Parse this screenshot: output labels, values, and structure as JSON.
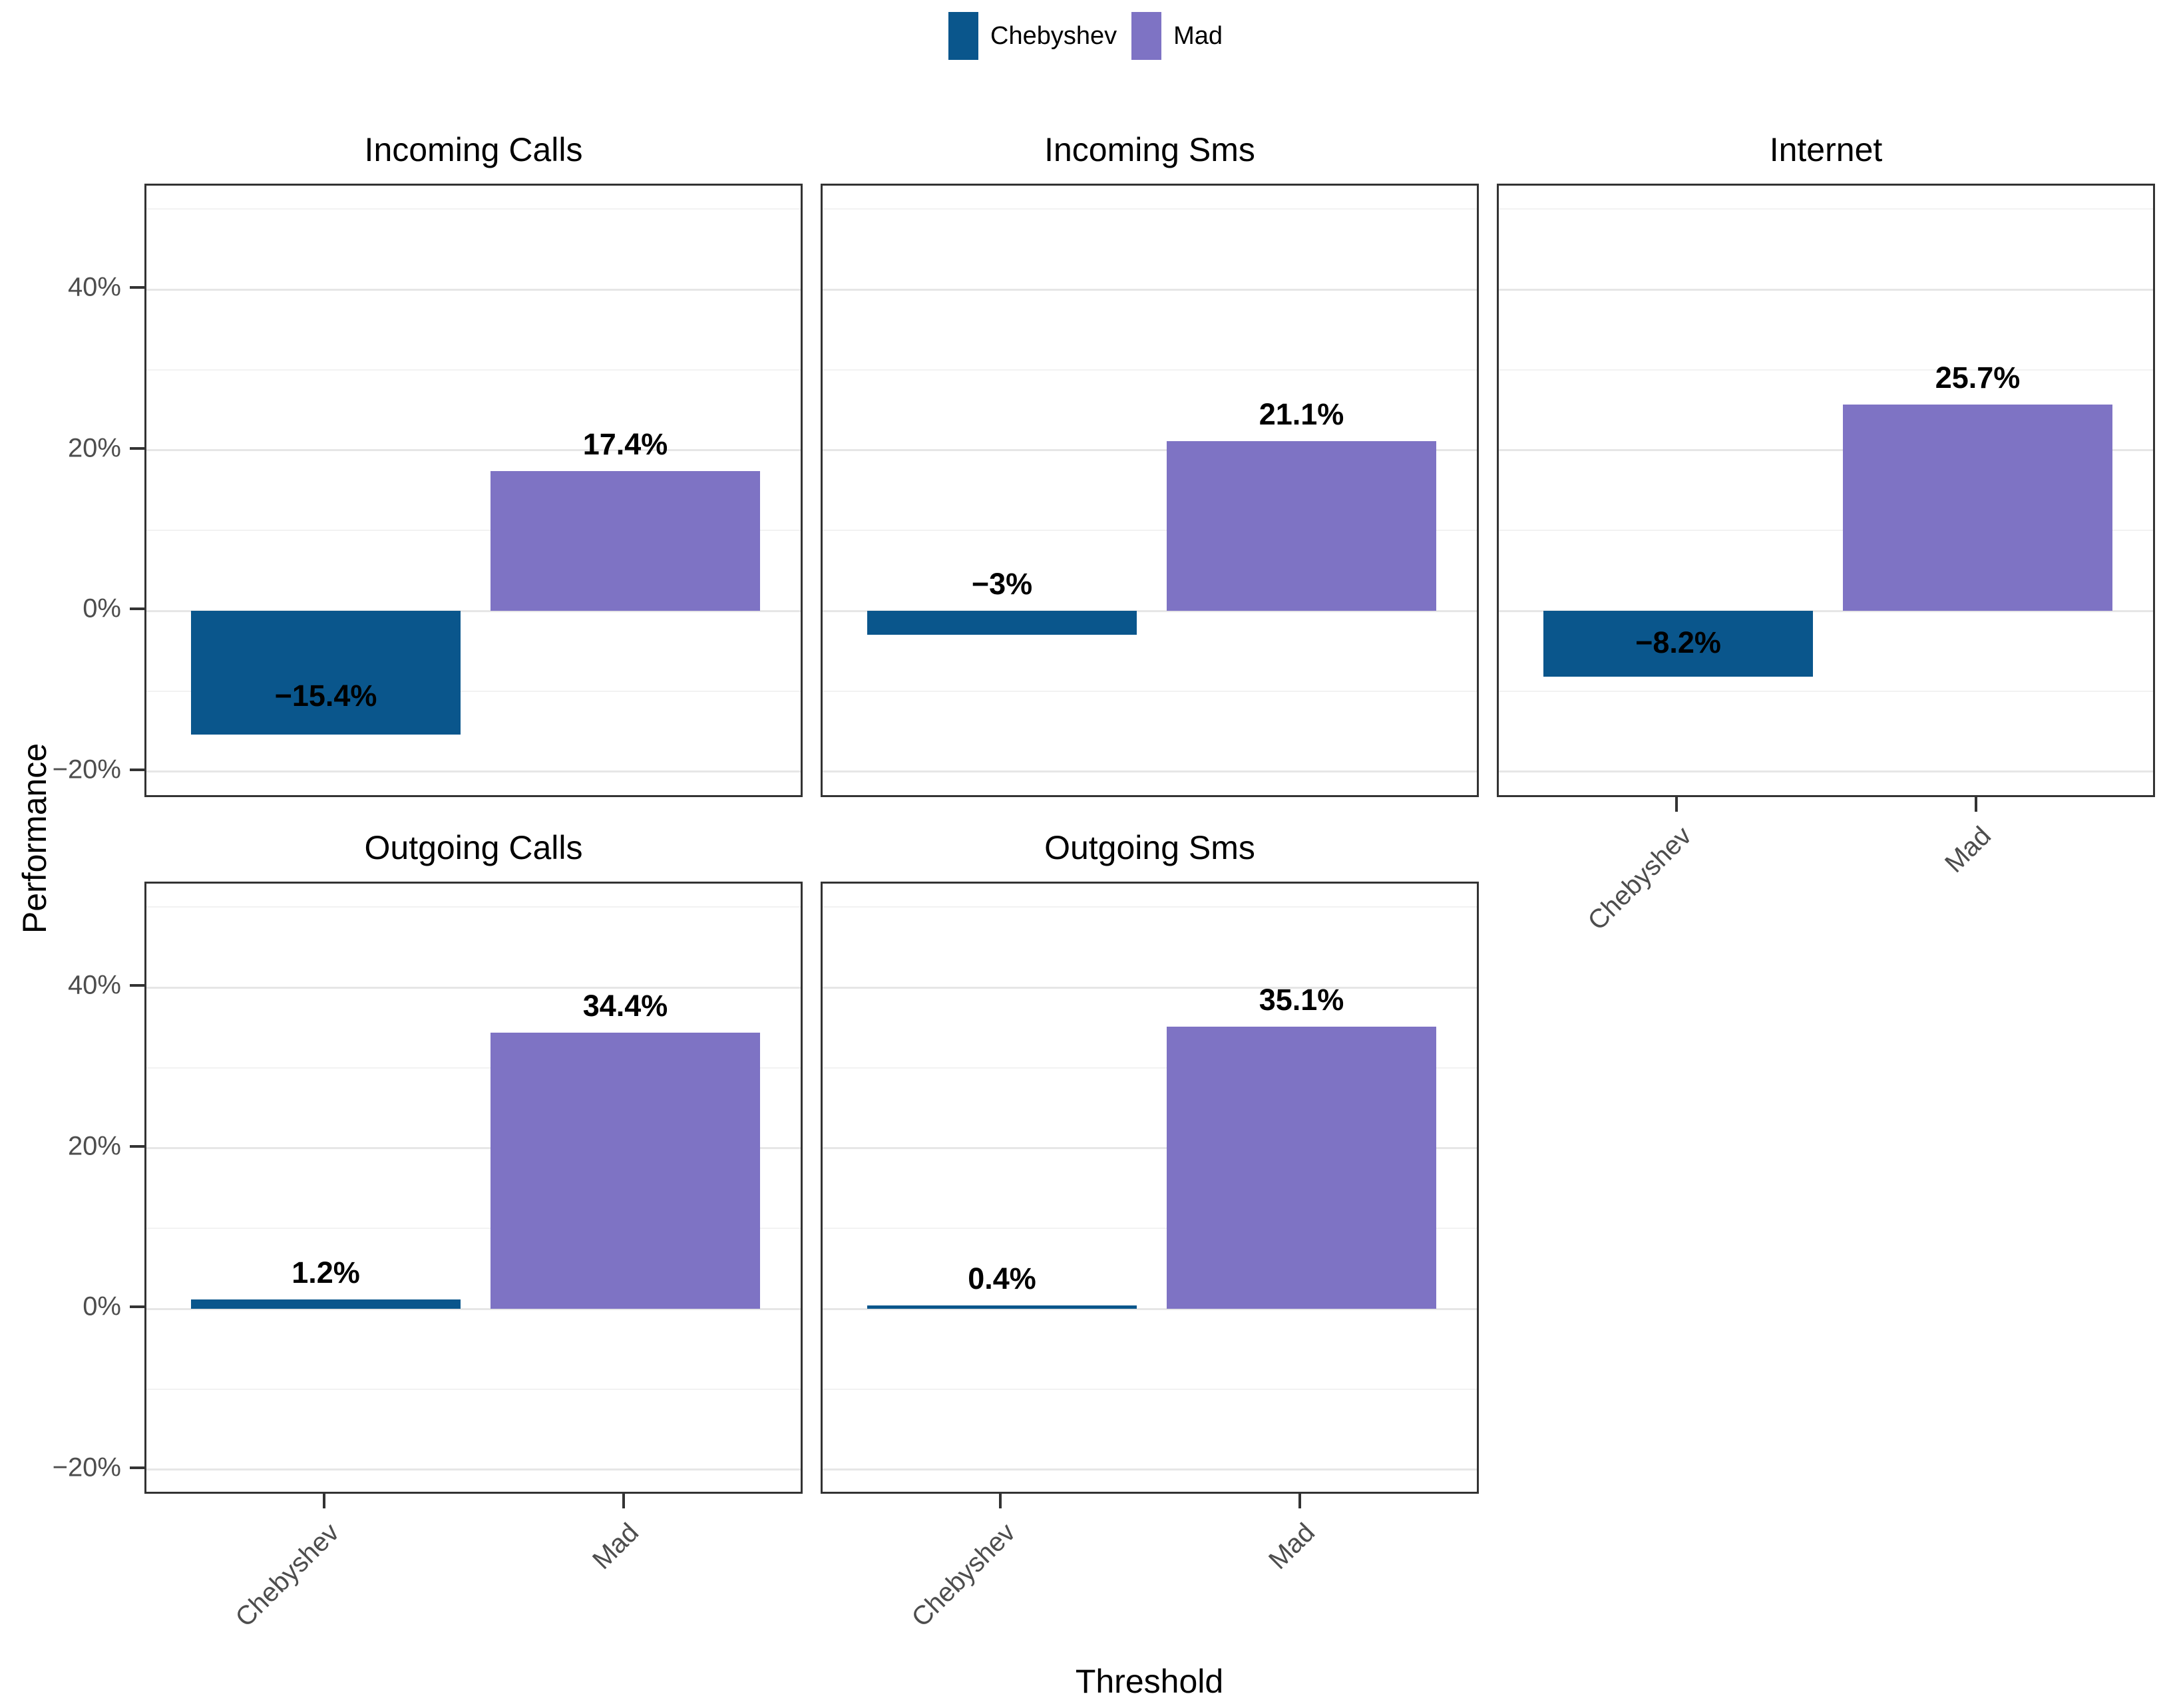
{
  "legend": {
    "items": [
      {
        "label": "Chebyshev",
        "color": "#0a568c"
      },
      {
        "label": "Mad",
        "color": "#7e73c4"
      }
    ]
  },
  "axes": {
    "y_title": "Performance",
    "x_title": "Threshold"
  },
  "chart_data": {
    "type": "bar",
    "categories": [
      "Chebyshev",
      "Mad"
    ],
    "series_colors": {
      "Chebyshev": "#0a568c",
      "Mad": "#7e73c4"
    },
    "facets": [
      {
        "title": "Incoming Calls",
        "row": 0,
        "col": 0,
        "values": [
          -15.4,
          17.4
        ],
        "labels": [
          "−15.4%",
          "17.4%"
        ]
      },
      {
        "title": "Incoming Sms",
        "row": 0,
        "col": 1,
        "values": [
          -3,
          21.1
        ],
        "labels": [
          "−3%",
          "21.1%"
        ]
      },
      {
        "title": "Internet",
        "row": 0,
        "col": 2,
        "values": [
          -8.2,
          25.7
        ],
        "labels": [
          "−8.2%",
          "25.7%"
        ]
      },
      {
        "title": "Outgoing Calls",
        "row": 1,
        "col": 0,
        "values": [
          1.2,
          34.4
        ],
        "labels": [
          "1.2%",
          "34.4%"
        ]
      },
      {
        "title": "Outgoing Sms",
        "row": 1,
        "col": 1,
        "values": [
          0.4,
          35.1
        ],
        "labels": [
          "0.4%",
          "35.1%"
        ]
      }
    ],
    "xlabel": "Threshold",
    "ylabel": "Performance",
    "y_ticks": [
      {
        "value": 40,
        "label": "40%"
      },
      {
        "value": 20,
        "label": "20%"
      },
      {
        "value": 0,
        "label": "0%"
      },
      {
        "value": -20,
        "label": "−20%"
      }
    ],
    "y_minor_values": [
      50,
      30,
      10,
      -10
    ],
    "ylim": [
      -23.5,
      52.9
    ],
    "grid": true,
    "legend_position": "top",
    "colors": {
      "panel_border": "#333333",
      "grid_major": "#e6e6e6",
      "grid_minor": "#f2f2f2",
      "tick_text": "#4d4d4d",
      "bar_label_text": "#000000"
    }
  }
}
